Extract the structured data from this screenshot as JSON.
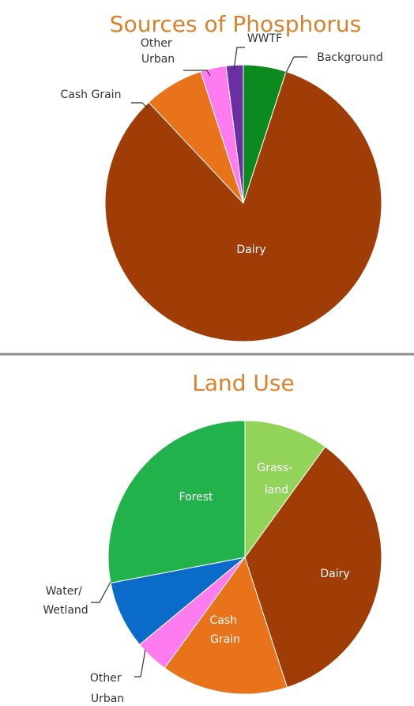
{
  "chart_data": [
    {
      "type": "pie",
      "title": "Sources of Phosphorus",
      "start": "top, clockwise",
      "slices": [
        {
          "label": "Background",
          "value": 5,
          "color": "#0a8a1f"
        },
        {
          "label": "Dairy",
          "value": 83,
          "color": "#a03c06"
        },
        {
          "label": "Cash Grain",
          "value": 7,
          "color": "#e8731a"
        },
        {
          "label": "Other Urban",
          "value": 3,
          "color": "#ff7cf0"
        },
        {
          "label": "WWTF",
          "value": 2,
          "color": "#6a2fa0"
        }
      ]
    },
    {
      "type": "pie",
      "title": "Land Use",
      "start": "top, clockwise",
      "slices": [
        {
          "label": "Grass- land",
          "value": 10,
          "color": "#92d35a"
        },
        {
          "label": "Dairy",
          "value": 35,
          "color": "#a03c06"
        },
        {
          "label": "Cash Grain",
          "value": 15,
          "color": "#e8731a"
        },
        {
          "label": "Other Urban",
          "value": 4,
          "color": "#ff7cf0"
        },
        {
          "label": "Water/ Wetland",
          "value": 8,
          "color": "#0a6bc9"
        },
        {
          "label": "Forest",
          "value": 28,
          "color": "#22b24c"
        }
      ]
    }
  ]
}
